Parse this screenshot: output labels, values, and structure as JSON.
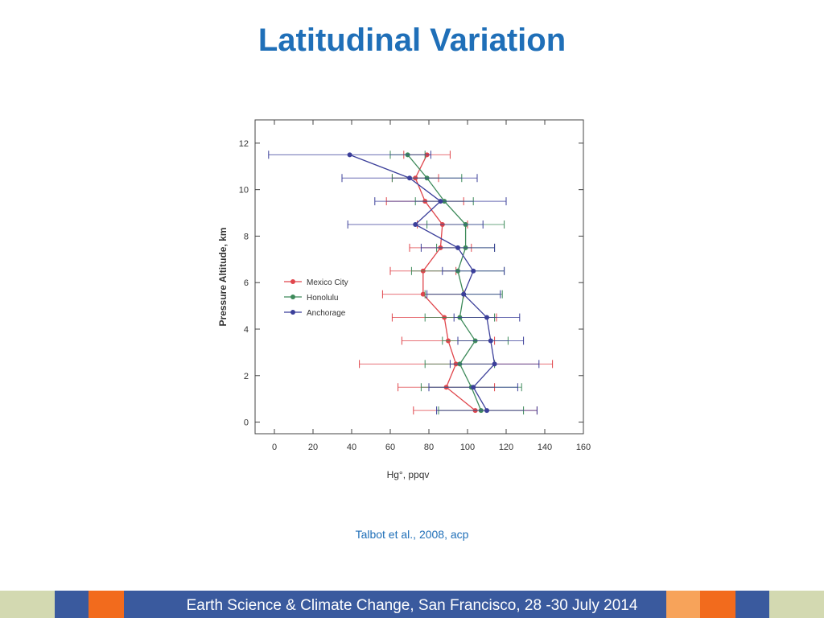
{
  "slide": {
    "title": "Latitudinal Variation",
    "citation": "Talbot et al., 2008, acp",
    "footer": "Earth Science & Climate Change, San Francisco, 28 -30 July 2014"
  },
  "colors": {
    "title": "#1f6fb8",
    "footer_olive": "#d3d9b1",
    "footer_blue": "#3a5a9e",
    "footer_orange": "#f26b1d",
    "footer_peach": "#f7a35a"
  },
  "chart_data": {
    "type": "line",
    "orientation": "profile (x = Hg value, y = altitude)",
    "xlabel": "Hg°, ppqv",
    "ylabel": "Pressure Altitude, km",
    "xlim": [
      -10,
      160
    ],
    "ylim": [
      -0.5,
      13
    ],
    "xticks": [
      0,
      20,
      40,
      60,
      80,
      100,
      120,
      140,
      160
    ],
    "yticks": [
      0,
      2,
      4,
      6,
      8,
      10,
      12
    ],
    "legend_position": "left-middle",
    "grid": false,
    "series": [
      {
        "name": "Mexico City",
        "color": "#e0454b",
        "points": [
          {
            "x": 104,
            "y": 0.5,
            "xerr_low": 72,
            "xerr_high": 136
          },
          {
            "x": 89,
            "y": 1.5,
            "xerr_low": 64,
            "xerr_high": 114
          },
          {
            "x": 94,
            "y": 2.5,
            "xerr_low": 44,
            "xerr_high": 144
          },
          {
            "x": 90,
            "y": 3.5,
            "xerr_low": 66,
            "xerr_high": 114
          },
          {
            "x": 88,
            "y": 4.5,
            "xerr_low": 61,
            "xerr_high": 115
          },
          {
            "x": 77,
            "y": 5.5,
            "xerr_low": 56,
            "xerr_high": 98
          },
          {
            "x": 77,
            "y": 6.5,
            "xerr_low": 60,
            "xerr_high": 94
          },
          {
            "x": 86,
            "y": 7.5,
            "xerr_low": 70,
            "xerr_high": 102
          },
          {
            "x": 87,
            "y": 8.5,
            "xerr_low": 74,
            "xerr_high": 100
          },
          {
            "x": 78,
            "y": 9.5,
            "xerr_low": 58,
            "xerr_high": 98
          },
          {
            "x": 73,
            "y": 10.5,
            "xerr_low": 61,
            "xerr_high": 85
          },
          {
            "x": 79,
            "y": 11.5,
            "xerr_low": 67,
            "xerr_high": 91
          }
        ]
      },
      {
        "name": "Honolulu",
        "color": "#3d8a5a",
        "points": [
          {
            "x": 107,
            "y": 0.5,
            "xerr_low": 85,
            "xerr_high": 129
          },
          {
            "x": 102,
            "y": 1.5,
            "xerr_low": 76,
            "xerr_high": 128
          },
          {
            "x": 96,
            "y": 2.5,
            "xerr_low": 78,
            "xerr_high": 114
          },
          {
            "x": 104,
            "y": 3.5,
            "xerr_low": 87,
            "xerr_high": 121
          },
          {
            "x": 96,
            "y": 4.5,
            "xerr_low": 78,
            "xerr_high": 114
          },
          {
            "x": 98,
            "y": 5.5,
            "xerr_low": 78,
            "xerr_high": 118
          },
          {
            "x": 95,
            "y": 6.5,
            "xerr_low": 71,
            "xerr_high": 119
          },
          {
            "x": 99,
            "y": 7.5,
            "xerr_low": 84,
            "xerr_high": 114
          },
          {
            "x": 99,
            "y": 8.5,
            "xerr_low": 79,
            "xerr_high": 119
          },
          {
            "x": 88,
            "y": 9.5,
            "xerr_low": 73,
            "xerr_high": 103
          },
          {
            "x": 79,
            "y": 10.5,
            "xerr_low": 61,
            "xerr_high": 97
          },
          {
            "x": 69,
            "y": 11.5,
            "xerr_low": 60,
            "xerr_high": 78
          }
        ]
      },
      {
        "name": "Anchorage",
        "color": "#3b3f9a",
        "points": [
          {
            "x": 110,
            "y": 0.5,
            "xerr_low": 84,
            "xerr_high": 136
          },
          {
            "x": 103,
            "y": 1.5,
            "xerr_low": 80,
            "xerr_high": 126
          },
          {
            "x": 114,
            "y": 2.5,
            "xerr_low": 91,
            "xerr_high": 137
          },
          {
            "x": 112,
            "y": 3.5,
            "xerr_low": 95,
            "xerr_high": 129
          },
          {
            "x": 110,
            "y": 4.5,
            "xerr_low": 93,
            "xerr_high": 127
          },
          {
            "x": 98,
            "y": 5.5,
            "xerr_low": 79,
            "xerr_high": 117
          },
          {
            "x": 103,
            "y": 6.5,
            "xerr_low": 87,
            "xerr_high": 119
          },
          {
            "x": 95,
            "y": 7.5,
            "xerr_low": 76,
            "xerr_high": 114
          },
          {
            "x": 73,
            "y": 8.5,
            "xerr_low": 38,
            "xerr_high": 108
          },
          {
            "x": 86,
            "y": 9.5,
            "xerr_low": 52,
            "xerr_high": 120
          },
          {
            "x": 70,
            "y": 10.5,
            "xerr_low": 35,
            "xerr_high": 105
          },
          {
            "x": 39,
            "y": 11.5,
            "xerr_low": -3,
            "xerr_high": 81
          }
        ]
      }
    ]
  }
}
